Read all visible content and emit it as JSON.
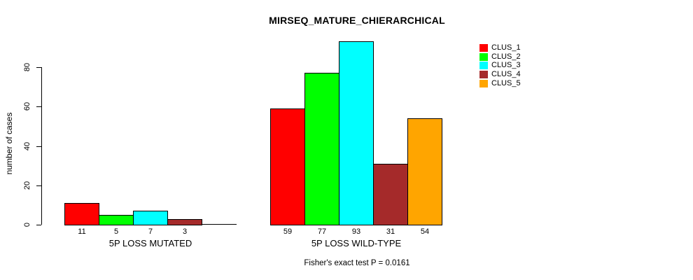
{
  "title": "MIRSEQ_MATURE_CHIERARCHICAL",
  "subtitle": "Fisher's exact test P = 0.0161",
  "y_axis": {
    "label": "number of cases",
    "ticks": [
      "0",
      "20",
      "40",
      "60",
      "80"
    ]
  },
  "legend": {
    "items": [
      {
        "label": "CLUS_1",
        "color": "#FF0000"
      },
      {
        "label": "CLUS_2",
        "color": "#00FF00"
      },
      {
        "label": "CLUS_3",
        "color": "#00FFFF"
      },
      {
        "label": "CLUS_4",
        "color": "#A52A2A"
      },
      {
        "label": "CLUS_5",
        "color": "#FFA500"
      }
    ]
  },
  "chart_data": {
    "type": "bar",
    "title": "MIRSEQ_MATURE_CHIERARCHICAL",
    "xlabel": "",
    "ylabel": "number of cases",
    "ylim": [
      0,
      80
    ],
    "yticks": [
      0,
      20,
      40,
      60,
      80
    ],
    "grid": false,
    "legend_position": "top-right",
    "annotation": "Fisher's exact test P = 0.0161",
    "categories": [
      "5P LOSS MUTATED",
      "5P LOSS WILD-TYPE"
    ],
    "series": [
      {
        "name": "CLUS_1",
        "color": "#FF0000",
        "values": [
          11,
          59
        ]
      },
      {
        "name": "CLUS_2",
        "color": "#00FF00",
        "values": [
          5,
          77
        ]
      },
      {
        "name": "CLUS_3",
        "color": "#00FFFF",
        "values": [
          7,
          93
        ]
      },
      {
        "name": "CLUS_4",
        "color": "#A52A2A",
        "values": [
          3,
          31
        ]
      },
      {
        "name": "CLUS_5",
        "color": "#FFA500",
        "values": [
          0,
          54
        ]
      }
    ],
    "bar_value_labels": [
      [
        "11",
        "5",
        "7",
        "3",
        ""
      ],
      [
        "59",
        "77",
        "93",
        "31",
        "54"
      ]
    ]
  }
}
